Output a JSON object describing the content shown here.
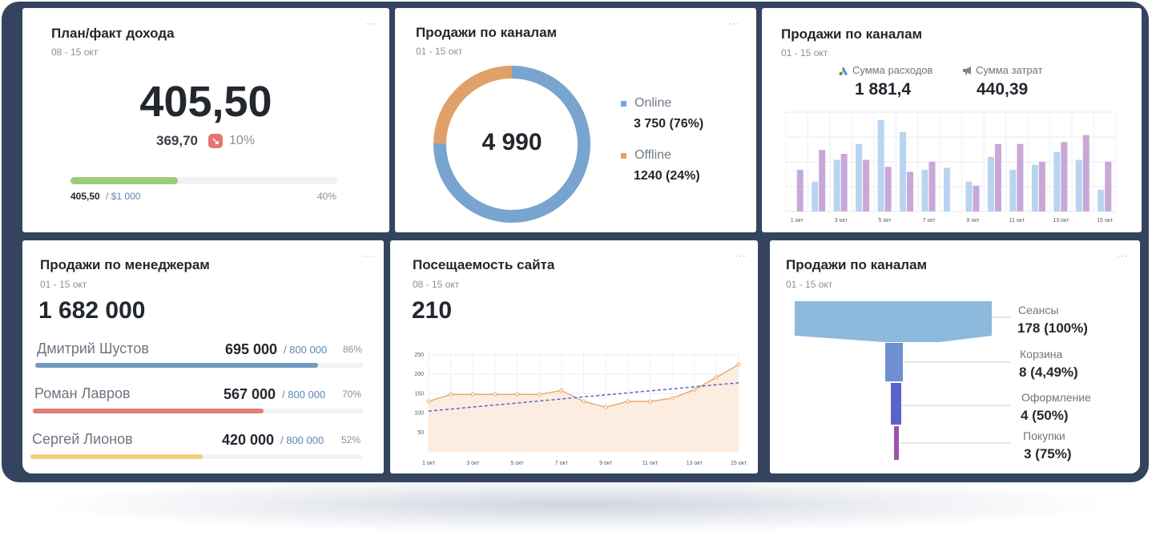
{
  "colors": {
    "frame": "#34445e",
    "green_progress": "#9ccc75",
    "online_blue": "#77a5cf",
    "offline_orange": "#e0a068",
    "bar_light_blue": "#b8d4f0",
    "bar_purple": "#c8a8d8",
    "down_badge": "#e57373",
    "manager1": "#6f99c2",
    "manager2": "#e07e78",
    "manager3": "#f0cf7e",
    "traffic_line": "#e8a86a",
    "trend_line": "#5566cc"
  },
  "more_icon": "ellipsis-icon",
  "card1": {
    "title": "План/факт дохода",
    "period": "08 - 15 окт",
    "value": "405,50",
    "previous": "369,70",
    "change": "10%",
    "change_icon": "arrow-down-right-icon",
    "progress_label": "405,50",
    "progress_target": "/ $1 000",
    "progress_percent": "40%",
    "progress_fraction": 0.4
  },
  "card2": {
    "title": "Продажи по каналам",
    "period": "01 - 15 окт",
    "total": "4 990",
    "legend": [
      {
        "name": "Online",
        "value": "3 750 (76%)"
      },
      {
        "name": "Offline",
        "value": "1240 (24%)"
      }
    ]
  },
  "card3": {
    "title": "Продажи по каналам",
    "period": "01 - 15 окт",
    "kpi1_label": "Сумма расходов",
    "kpi1_icon": "google-ads-icon",
    "kpi1_value": "1 881,4",
    "kpi2_label": "Сумма затрат",
    "kpi2_icon": "megaphone-icon",
    "kpi2_value": "440,39"
  },
  "card4": {
    "title": "Продажи по менеджерам",
    "period": "01 - 15 окт",
    "total": "1 682 000",
    "managers": [
      {
        "name": "Дмитрий Шустов",
        "value": "695 000",
        "plan": "/ 800 000",
        "percent": "86%",
        "fraction": 0.86
      },
      {
        "name": "Роман Лавров",
        "value": "567 000",
        "plan": "/ 800 000",
        "percent": "70%",
        "fraction": 0.7
      },
      {
        "name": "Сергей Лионов",
        "value": "420 000",
        "plan": "/ 800 000",
        "percent": "52%",
        "fraction": 0.52
      }
    ]
  },
  "card5": {
    "title": "Посещаемость сайта",
    "period": "08 - 15 окт",
    "value": "210"
  },
  "card6": {
    "title": "Продажи по каналам",
    "period": "01 - 15 окт",
    "stages": [
      {
        "label": "Сеансы",
        "value": "178 (100%)"
      },
      {
        "label": "Корзина",
        "value": "8 (4,49%)"
      },
      {
        "label": "Оформление",
        "value": "4 (50%)"
      },
      {
        "label": "Покупки",
        "value": "3 (75%)"
      }
    ]
  },
  "chart_data": [
    {
      "type": "pie",
      "categories": [
        "Online",
        "Offline"
      ],
      "values": [
        3750,
        1240
      ],
      "title": "Продажи по каналам"
    },
    {
      "type": "bar",
      "title": "Продажи по каналам",
      "categories": [
        "1 окт",
        "2 окт",
        "3 окт",
        "4 окт",
        "5 окт",
        "6 окт",
        "7 окт",
        "8 окт",
        "9 окт",
        "10 окт",
        "11 окт",
        "12 окт",
        "13 окт",
        "14 окт",
        "15 окт"
      ],
      "tick_labels": [
        "1 окт",
        "3 окт",
        "5 окт",
        "7 окт",
        "9 окт",
        "11 окт",
        "13 окт",
        "15 окт"
      ],
      "series": [
        {
          "name": "Сумма расходов",
          "values": [
            0,
            30,
            52,
            68,
            92,
            80,
            42,
            44,
            30,
            55,
            42,
            47,
            60,
            52,
            22
          ]
        },
        {
          "name": "Сумма затрат",
          "values": [
            42,
            62,
            58,
            52,
            45,
            40,
            50,
            0,
            26,
            68,
            68,
            50,
            70,
            77,
            50
          ]
        }
      ],
      "ylim": [
        0,
        100
      ],
      "grid": true
    },
    {
      "type": "line",
      "x": [
        "1 окт",
        "2 окт",
        "3 окт",
        "4 окт",
        "5 окт",
        "6 окт",
        "7 окт",
        "8 окт",
        "9 окт",
        "10 окт",
        "11 окт",
        "12 окт",
        "13 окт",
        "14 окт",
        "15 окт"
      ],
      "tick_labels": [
        "1 окт",
        "3 окт",
        "5 окт",
        "7 окт",
        "9 окт",
        "11 окт",
        "13 окт",
        "15 окт"
      ],
      "series": [
        {
          "values": [
            130,
            148,
            148,
            148,
            148,
            148,
            158,
            130,
            115,
            130,
            130,
            138,
            160,
            192,
            225
          ]
        }
      ],
      "trend": [
        105,
        178
      ],
      "yticks": [
        50,
        100,
        150,
        200,
        250
      ],
      "ylim": [
        0,
        260
      ],
      "grid": true
    }
  ]
}
